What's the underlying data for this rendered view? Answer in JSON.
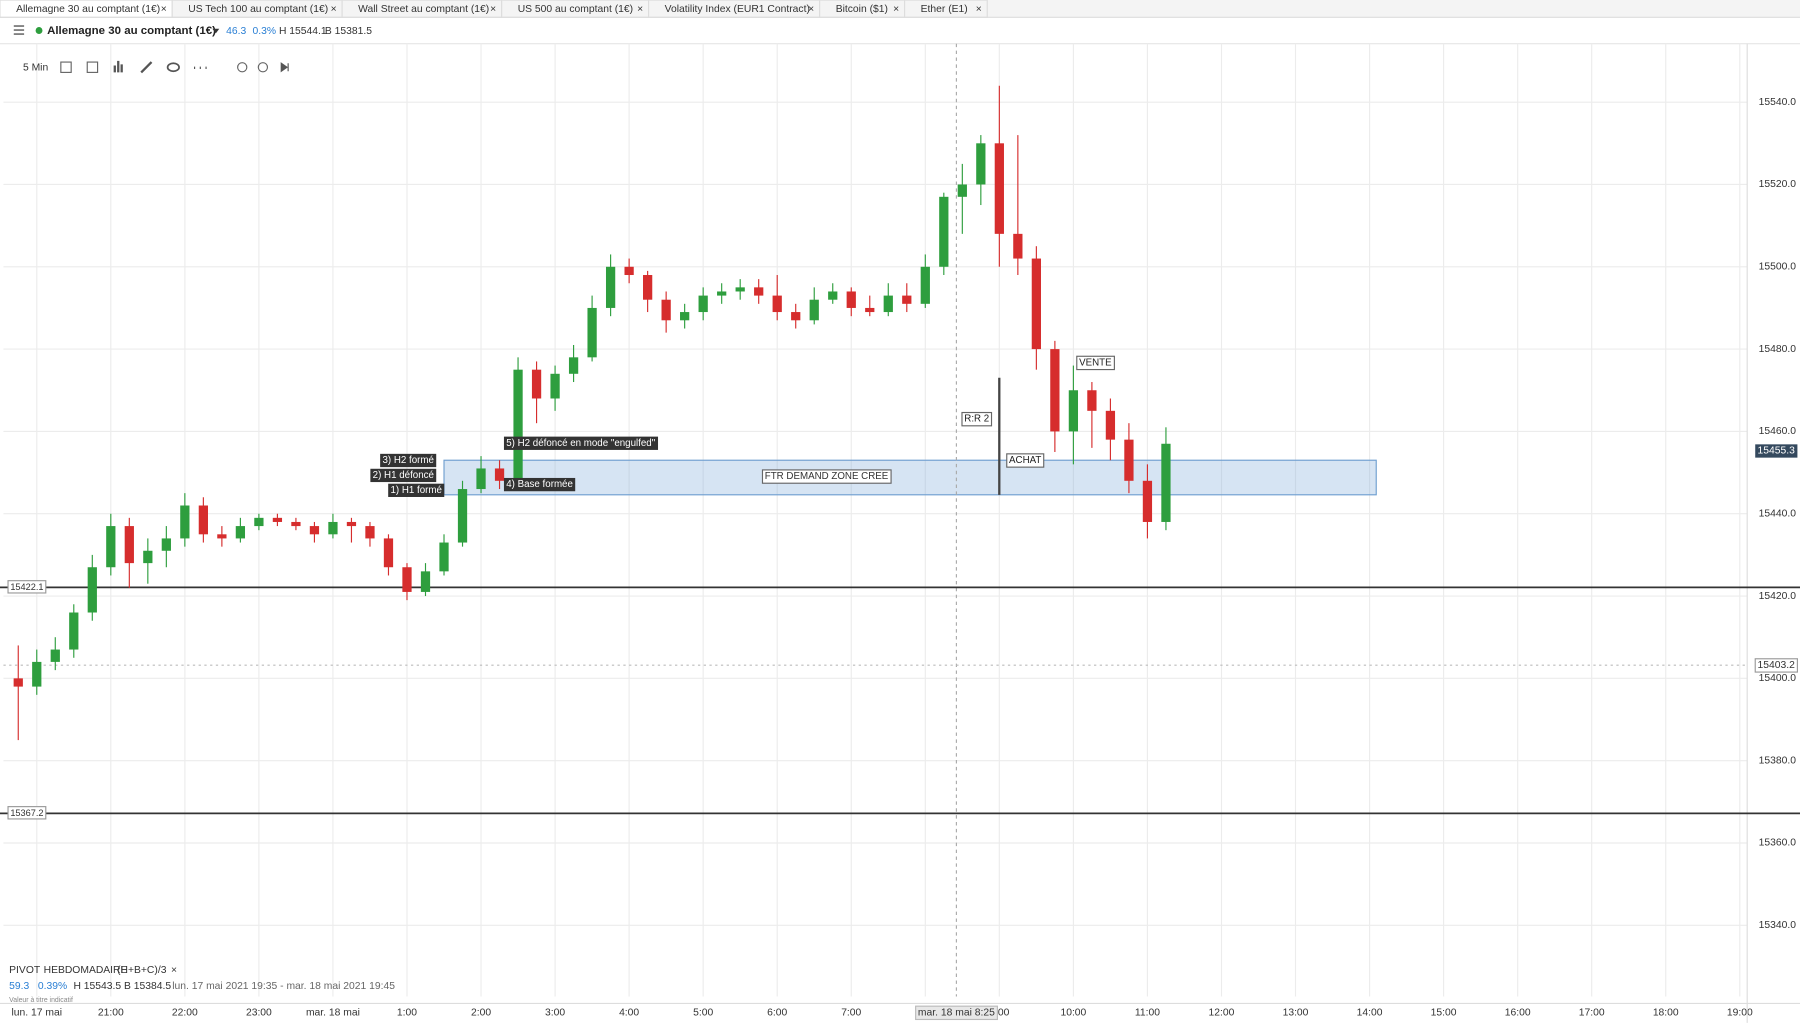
{
  "tabs": [
    "Allemagne 30 au comptant (1€)",
    "US Tech 100 au comptant (1€)",
    "Wall Street au comptant (1€)",
    "US 500 au comptant (1€)",
    "Volatility Index (EUR1 Contract)",
    "Bitcoin ($1)",
    "Ether (E1)"
  ],
  "header": {
    "symbol": "Allemagne 30 au comptant (1€)",
    "change": "46.3",
    "change_pct": "0.3%",
    "high": "H 15544.1",
    "low": "B 15381.5"
  },
  "toolbar": {
    "interval": "5 Min"
  },
  "footer": {
    "indicator": "PIVOT",
    "period": "HEBDOMADAIRE",
    "formula": "(H+B+C)/3",
    "value": "59.3",
    "pct": "0.39%",
    "high": "H 15543.5",
    "low": "B 15384.5",
    "range": "lun. 17 mai 2021 19:35 - mar. 18 mai 2021 19:45",
    "disclaimer": "Valeur à titre indicatif"
  },
  "chart_data": {
    "type": "candlestick",
    "up_color": "#2e9e3e",
    "down_color": "#d62d2d",
    "grid": true,
    "xlim": [
      19.55,
      43.1
    ],
    "ylim": [
      15322.7,
      15554.2
    ],
    "xticks": [
      {
        "value": 20,
        "label": "lun. 17 mai"
      },
      {
        "value": 21,
        "label": "21:00"
      },
      {
        "value": 22,
        "label": "22:00"
      },
      {
        "value": 23,
        "label": "23:00"
      },
      {
        "value": 24,
        "label": "mar. 18 mai"
      },
      {
        "value": 25,
        "label": "1:00"
      },
      {
        "value": 26,
        "label": "2:00"
      },
      {
        "value": 27,
        "label": "3:00"
      },
      {
        "value": 28,
        "label": "4:00"
      },
      {
        "value": 29,
        "label": "5:00"
      },
      {
        "value": 30,
        "label": "6:00"
      },
      {
        "value": 31,
        "label": "7:00"
      },
      {
        "value": 32,
        "label": "8:00"
      },
      {
        "value": 33,
        "label": "9:00"
      },
      {
        "value": 34,
        "label": "10:00"
      },
      {
        "value": 35,
        "label": "11:00"
      },
      {
        "value": 36,
        "label": "12:00"
      },
      {
        "value": 37,
        "label": "13:00"
      },
      {
        "value": 38,
        "label": "14:00"
      },
      {
        "value": 39,
        "label": "15:00"
      },
      {
        "value": 40,
        "label": "16:00"
      },
      {
        "value": 41,
        "label": "17:00"
      },
      {
        "value": 42,
        "label": "18:00"
      },
      {
        "value": 43,
        "label": "19:00"
      }
    ],
    "yticks": [
      {
        "value": 15340,
        "label": "15340.0"
      },
      {
        "value": 15360,
        "label": "15360.0"
      },
      {
        "value": 15380,
        "label": "15380.0"
      },
      {
        "value": 15400,
        "label": "15400.0"
      },
      {
        "value": 15420,
        "label": "15420.0"
      },
      {
        "value": 15440,
        "label": "15440.0"
      },
      {
        "value": 15460,
        "label": "15460.0"
      },
      {
        "value": 15480,
        "label": "15480.0"
      },
      {
        "value": 15500,
        "label": "15500.0"
      },
      {
        "value": 15520,
        "label": "15520.0"
      },
      {
        "value": 15540,
        "label": "15540.0"
      }
    ],
    "x": [
      19.75,
      20,
      20.25,
      20.5,
      20.75,
      21,
      21.25,
      21.5,
      21.75,
      22,
      22.25,
      22.5,
      22.75,
      23,
      23.25,
      23.5,
      23.75,
      24,
      24.25,
      24.5,
      24.75,
      25,
      25.25,
      25.5,
      25.75,
      26,
      26.25,
      26.5,
      26.75,
      27,
      27.25,
      27.5,
      27.75,
      28,
      28.25,
      28.5,
      28.75,
      29,
      29.25,
      29.5,
      29.75,
      30,
      30.25,
      30.5,
      30.75,
      31,
      31.25,
      31.5,
      31.75,
      32,
      32.25,
      32.5,
      32.75,
      33,
      33.25,
      33.5,
      33.75,
      34,
      34.25,
      34.5,
      34.75,
      35,
      35.25
    ],
    "open": [
      15400,
      15398,
      15404,
      15407,
      15416,
      15427,
      15437,
      15428,
      15431,
      15434,
      15442,
      15435,
      15434,
      15437,
      15439,
      15438,
      15437,
      15435,
      15438,
      15437,
      15434,
      15427,
      15421,
      15426,
      15433,
      15446,
      15451,
      15448,
      15475,
      15468,
      15474,
      15478,
      15490,
      15500,
      15498,
      15492,
      15487,
      15489,
      15493,
      15494,
      15495,
      15493,
      15489,
      15487,
      15492,
      15494,
      15490,
      15489,
      15493,
      15491,
      15500,
      15517,
      15520,
      15530,
      15508,
      15502,
      15480,
      15460,
      15470,
      15465,
      15458,
      15448,
      15438
    ],
    "high": [
      15408,
      15407,
      15410,
      15418,
      15430,
      15440,
      15439,
      15434,
      15437,
      15445,
      15444,
      15437,
      15439,
      15440,
      15440,
      15439,
      15438,
      15440,
      15439,
      15438,
      15435,
      15428,
      15428,
      15435,
      15448,
      15454,
      15453,
      15478,
      15477,
      15476,
      15481,
      15493,
      15503,
      15502,
      15499,
      15494,
      15491,
      15495,
      15496,
      15497,
      15497,
      15498,
      15491,
      15495,
      15496,
      15495,
      15493,
      15496,
      15496,
      15503,
      15518,
      15525,
      15532,
      15544,
      15532,
      15505,
      15482,
      15476,
      15472,
      15468,
      15462,
      15452,
      15461
    ],
    "low": [
      15385,
      15396,
      15402,
      15405,
      15414,
      15425,
      15422,
      15423,
      15427,
      15432,
      15433,
      15432,
      15433,
      15436,
      15437,
      15436,
      15433,
      15434,
      15433,
      15432,
      15425,
      15419,
      15420,
      15425,
      15432,
      15445,
      15446,
      15447,
      15462,
      15465,
      15472,
      15477,
      15488,
      15496,
      15489,
      15484,
      15485,
      15487,
      15491,
      15492,
      15491,
      15487,
      15485,
      15486,
      15491,
      15488,
      15488,
      15488,
      15489,
      15490,
      15498,
      15508,
      15515,
      15500,
      15498,
      15475,
      15455,
      15452,
      15456,
      15453,
      15445,
      15434,
      15436
    ],
    "close": [
      15398,
      15404,
      15407,
      15416,
      15427,
      15437,
      15428,
      15431,
      15434,
      15442,
      15435,
      15434,
      15437,
      15439,
      15438,
      15437,
      15435,
      15438,
      15437,
      15434,
      15427,
      15421,
      15426,
      15433,
      15446,
      15451,
      15448,
      15475,
      15468,
      15474,
      15478,
      15490,
      15500,
      15498,
      15492,
      15487,
      15489,
      15493,
      15494,
      15495,
      15493,
      15489,
      15487,
      15492,
      15494,
      15490,
      15489,
      15493,
      15491,
      15500,
      15517,
      15520,
      15530,
      15508,
      15502,
      15480,
      15460,
      15470,
      15465,
      15458,
      15448,
      15438,
      15457
    ],
    "hlines": [
      {
        "value": 15422.1,
        "label": "15422.1"
      },
      {
        "value": 15367.2,
        "label": "15367.2"
      }
    ],
    "pivot_line": {
      "value": 15403.2,
      "label": "15403.2"
    },
    "last_price": {
      "value": 15455.3,
      "label": "15455.3"
    },
    "crosshair": {
      "value": 32.42,
      "label": "mar. 18 mai 8:25"
    },
    "zone": {
      "label": "FTR DEMAND ZONE CREE",
      "x": [
        25.5,
        38.09
      ],
      "y": [
        15444.6,
        15453
      ]
    },
    "annotations": [
      "3) H2 formé",
      "2) H1 défoncé",
      "1) H1 formé",
      "5) H2 défoncé en mode \"engulfed\"",
      "4) Base formée",
      "R:R 2",
      "ACHAT",
      "VENTE"
    ]
  }
}
